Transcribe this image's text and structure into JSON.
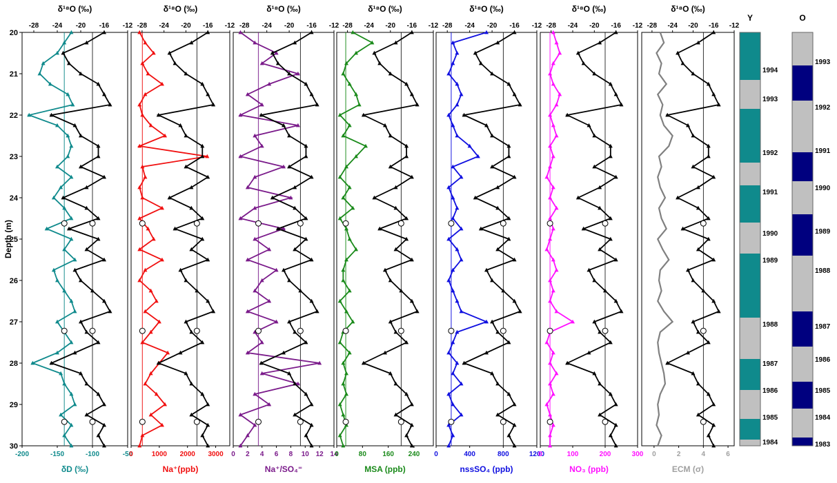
{
  "chart_data": {
    "type": "line",
    "shared": {
      "depth_label": "Depth (m)",
      "depth_range": [
        20,
        30
      ],
      "depth_ticks": [
        20,
        21,
        22,
        23,
        24,
        25,
        26,
        27,
        28,
        29,
        30
      ],
      "d18o_title": "δ¹⁸O (‰)",
      "d18o_range": [
        -30,
        -12
      ],
      "d18o_ticks": [
        "-28",
        "-24",
        "-20",
        "-16",
        "-12"
      ],
      "d18o_color": "#000000",
      "d18o_depth": [
        20.0,
        20.25,
        20.5,
        20.75,
        21.0,
        21.25,
        21.5,
        21.75,
        22.0,
        22.25,
        22.5,
        22.75,
        23.0,
        23.25,
        23.5,
        23.75,
        24.0,
        24.25,
        24.5,
        24.75,
        25.0,
        25.25,
        25.5,
        25.75,
        26.0,
        26.25,
        26.5,
        26.75,
        27.0,
        27.25,
        27.5,
        27.75,
        28.0,
        28.25,
        28.5,
        28.75,
        29.0,
        29.25,
        29.5,
        29.75,
        30.0
      ],
      "d18o_values": [
        -16,
        -19,
        -23,
        -22,
        -20,
        -17,
        -16,
        -15,
        -25,
        -21,
        -20,
        -17,
        -17,
        -20,
        -16,
        -19,
        -23,
        -19,
        -17,
        -22,
        -17,
        -19,
        -16,
        -21,
        -20,
        -18,
        -16,
        -15,
        -20,
        -19,
        -17,
        -21,
        -25,
        -20,
        -19,
        -17,
        -16,
        -19,
        -16,
        -17,
        -16
      ],
      "open_circles_depth": [
        24.62,
        27.22,
        29.42
      ]
    },
    "panels": [
      {
        "xlabel": "δD (‰)",
        "color": "#0f8a8c",
        "range": [
          -200,
          -50
        ],
        "ticks": [
          "-200",
          "-150",
          "-100",
          "-50"
        ],
        "mean": -140,
        "values": [
          -130,
          -140,
          -150,
          -170,
          -175,
          -160,
          -135,
          -128,
          -190,
          -150,
          -135,
          -130,
          -135,
          -150,
          -130,
          -145,
          -155,
          -140,
          -130,
          -165,
          -130,
          -140,
          -125,
          -155,
          -150,
          -140,
          -130,
          -125,
          -150,
          -140,
          -130,
          -150,
          -185,
          -145,
          -140,
          -130,
          -125,
          -145,
          -130,
          -140,
          -130
        ]
      },
      {
        "xlabel": "Na⁺(ppb)",
        "color": "#f01010",
        "range": [
          0,
          3500
        ],
        "ticks": [
          "0",
          "1000",
          "2000",
          "3000"
        ],
        "mean": 400,
        "values": [
          300,
          500,
          800,
          400,
          600,
          1100,
          500,
          300,
          400,
          700,
          1200,
          300,
          2700,
          400,
          500,
          300,
          400,
          1100,
          300,
          600,
          800,
          300,
          1100,
          500,
          300,
          700,
          900,
          500,
          1000,
          700,
          400,
          1300,
          1000,
          700,
          500,
          900,
          1200,
          700,
          1100,
          400,
          300
        ]
      },
      {
        "xlabel": "Na⁺/SO₄⁼",
        "color": "#7a1a8a",
        "range": [
          0,
          14
        ],
        "ticks": [
          "0",
          "2",
          "4",
          "6",
          "8",
          "10",
          "12",
          "14"
        ],
        "mean": 3.5,
        "values": [
          1,
          3,
          6,
          4,
          9,
          5,
          2,
          4,
          1,
          9,
          3,
          4,
          1,
          7,
          3,
          2,
          8,
          3,
          1,
          7,
          3,
          5,
          2,
          6,
          4,
          3,
          5,
          2,
          6,
          3,
          4,
          2,
          12,
          4,
          9,
          3,
          5,
          1,
          3,
          2,
          1
        ]
      },
      {
        "xlabel": "MSA (ppb)",
        "color": "#1a8a1a",
        "range": [
          0,
          300
        ],
        "ticks": [
          "0",
          "80",
          "160",
          "240"
        ],
        "mean": 28,
        "values": [
          50,
          110,
          60,
          30,
          20,
          40,
          60,
          70,
          10,
          40,
          20,
          90,
          60,
          30,
          10,
          40,
          20,
          50,
          10,
          30,
          40,
          60,
          30,
          20,
          20,
          40,
          10,
          30,
          50,
          20,
          10,
          40,
          20,
          30,
          20,
          30,
          10,
          20,
          30,
          10,
          20
        ]
      },
      {
        "xlabel": "nssSO₄ (ppb)",
        "color": "#1010e0",
        "range": [
          0,
          1200
        ],
        "ticks": [
          "0",
          "400",
          "800",
          "1200"
        ],
        "mean": 180,
        "values": [
          600,
          200,
          250,
          200,
          150,
          250,
          300,
          250,
          150,
          200,
          250,
          400,
          500,
          200,
          300,
          150,
          200,
          250,
          200,
          300,
          150,
          250,
          300,
          200,
          150,
          200,
          250,
          300,
          600,
          250,
          200,
          150,
          250,
          200,
          300,
          150,
          200,
          300,
          150,
          200,
          150
        ]
      },
      {
        "xlabel": "NO₃ (ppb)",
        "color": "#ff10ff",
        "range": [
          0,
          300
        ],
        "ticks": [
          "0",
          "100",
          "200",
          "300"
        ],
        "mean": 30,
        "values": [
          40,
          50,
          60,
          40,
          30,
          40,
          60,
          50,
          30,
          40,
          50,
          30,
          40,
          30,
          20,
          40,
          30,
          50,
          30,
          40,
          30,
          20,
          40,
          50,
          30,
          40,
          30,
          50,
          100,
          30,
          20,
          40,
          30,
          50,
          30,
          40,
          20,
          30,
          40,
          30,
          30
        ]
      },
      {
        "xlabel": "ECM (σ)",
        "xlabel_color": "#a0a0a0",
        "color": "#808080",
        "range": [
          -1,
          6.5
        ],
        "ticks": [
          "0",
          "2",
          "4",
          "6"
        ],
        "values": [
          0.5,
          0.8,
          0.2,
          0.6,
          0.4,
          1.0,
          0.3,
          0.7,
          0.5,
          0.8,
          1.5,
          1.2,
          0.4,
          0.6,
          0.3,
          0.5,
          0.9,
          0.4,
          0.6,
          1.0,
          0.3,
          0.7,
          1.2,
          0.5,
          0.4,
          0.6,
          0.3,
          0.8,
          1.5,
          0.5,
          0.3,
          0.4,
          0.6,
          0.8,
          0.9,
          0.5,
          0.3,
          0.4,
          0.2,
          0.6,
          0.3
        ]
      }
    ],
    "year_columns": [
      {
        "label": "Y",
        "color_a": "#0f8a8c",
        "color_b": "#c0c0c0",
        "segments": [
          [
            20.0,
            21.15,
            "a"
          ],
          [
            21.15,
            21.85,
            "b"
          ],
          [
            21.85,
            23.15,
            "a"
          ],
          [
            23.15,
            23.7,
            "b"
          ],
          [
            23.7,
            24.6,
            "a"
          ],
          [
            24.6,
            25.35,
            "b"
          ],
          [
            25.35,
            26.9,
            "a"
          ],
          [
            26.9,
            27.9,
            "b"
          ],
          [
            27.9,
            28.65,
            "a"
          ],
          [
            28.65,
            29.35,
            "b"
          ],
          [
            29.35,
            29.85,
            "a"
          ],
          [
            29.85,
            30.0,
            "b"
          ]
        ],
        "years": [
          {
            "label": "1994",
            "depth": 20.9
          },
          {
            "label": "1993",
            "depth": 21.6
          },
          {
            "label": "1992",
            "depth": 22.9
          },
          {
            "label": "1991",
            "depth": 23.85
          },
          {
            "label": "1990",
            "depth": 24.85
          },
          {
            "label": "1989",
            "depth": 25.5
          },
          {
            "label": "1988",
            "depth": 27.05
          },
          {
            "label": "1987",
            "depth": 28.0
          },
          {
            "label": "1986",
            "depth": 28.65
          },
          {
            "label": "1985",
            "depth": 29.3
          },
          {
            "label": "1984",
            "depth": 29.9
          }
        ]
      },
      {
        "label": "O",
        "color_a": "#00007f",
        "color_b": "#c0c0c0",
        "segments": [
          [
            20.0,
            20.8,
            "b"
          ],
          [
            20.8,
            21.65,
            "a"
          ],
          [
            21.65,
            22.9,
            "b"
          ],
          [
            22.9,
            23.6,
            "a"
          ],
          [
            23.6,
            24.4,
            "b"
          ],
          [
            24.4,
            25.4,
            "a"
          ],
          [
            25.4,
            26.75,
            "b"
          ],
          [
            26.75,
            27.6,
            "a"
          ],
          [
            27.6,
            28.45,
            "b"
          ],
          [
            28.45,
            29.1,
            "a"
          ],
          [
            29.1,
            29.8,
            "b"
          ],
          [
            29.8,
            30.0,
            "a"
          ]
        ],
        "years": [
          {
            "label": "1993",
            "depth": 20.7
          },
          {
            "label": "1992",
            "depth": 21.8
          },
          {
            "label": "1991",
            "depth": 22.85
          },
          {
            "label": "1990",
            "depth": 23.75
          },
          {
            "label": "1989",
            "depth": 24.8
          },
          {
            "label": "1988",
            "depth": 25.75
          },
          {
            "label": "1987",
            "depth": 27.1
          },
          {
            "label": "1986",
            "depth": 27.9
          },
          {
            "label": "1985",
            "depth": 28.65
          },
          {
            "label": "1984",
            "depth": 29.3
          },
          {
            "label": "1983",
            "depth": 29.95
          }
        ]
      }
    ]
  }
}
